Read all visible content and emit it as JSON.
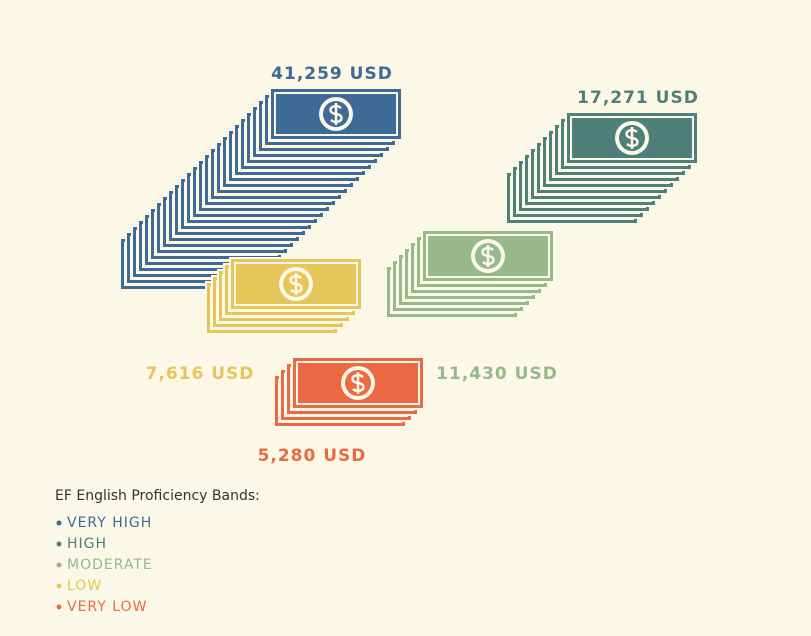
{
  "chart_data": {
    "type": "pictograph",
    "legend_title": "EF English Proficiency Bands:",
    "series": [
      {
        "name": "VERY HIGH",
        "color": "#3f6a95",
        "values": [
          41259
        ],
        "value_labels": [
          "41,259 USD"
        ]
      },
      {
        "name": "HIGH",
        "color": "#4f7f79",
        "values": [
          17271
        ],
        "value_labels": [
          "17,271 USD"
        ]
      },
      {
        "name": "MODERATE",
        "color": "#97b98a",
        "values": [
          11430
        ],
        "value_labels": [
          "11,430 USD"
        ]
      },
      {
        "name": "LOW",
        "color": "#e6c65a",
        "values": [
          7616
        ],
        "value_labels": [
          "7,616 USD"
        ]
      },
      {
        "name": "VERY LOW",
        "color": "#ec6a43",
        "values": [
          5280
        ],
        "value_labels": [
          "5,280 USD"
        ]
      }
    ]
  }
}
